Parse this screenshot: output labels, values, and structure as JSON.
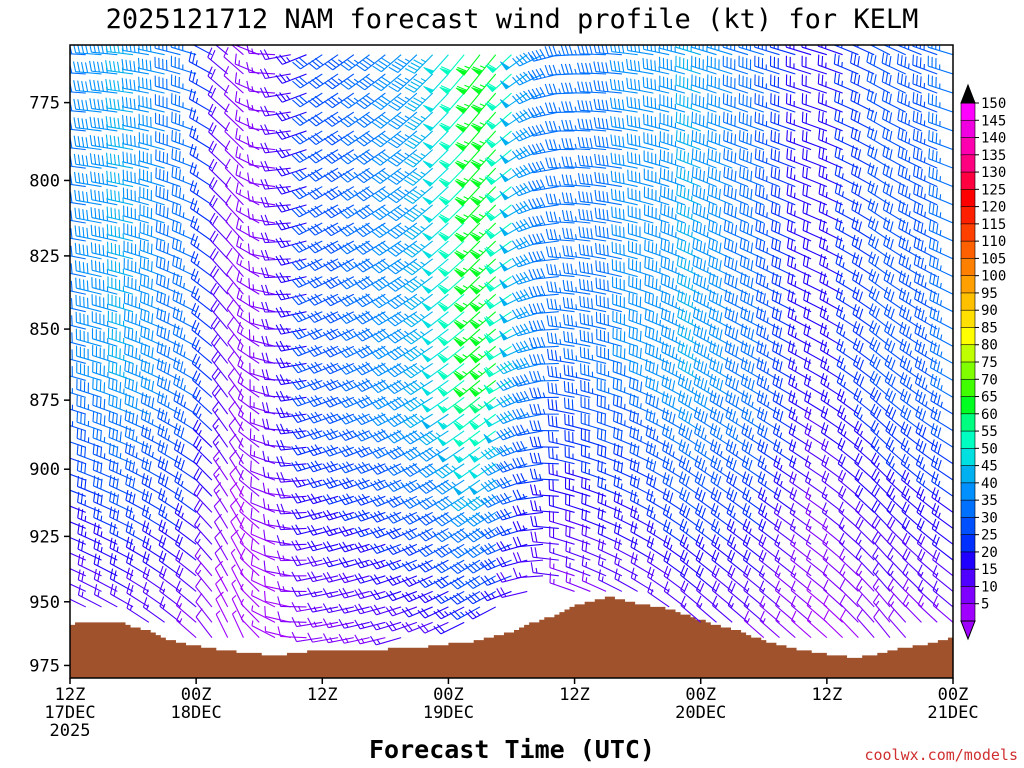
{
  "chart_data": {
    "type": "wind-barb-time-height",
    "title": "2025121712 NAM forecast wind profile (kt) for KELM",
    "xlabel": "Forecast Time (UTC)",
    "ylabel": "",
    "credit": "coolwx.com/models",
    "x_range_hours": [
      0,
      84
    ],
    "y_range_hpa": [
      757,
      980
    ],
    "y_ticks": [
      775,
      800,
      825,
      850,
      875,
      900,
      925,
      950,
      975
    ],
    "x_ticks": [
      {
        "hour": 0,
        "lines": [
          "12Z",
          "17DEC",
          "2025"
        ]
      },
      {
        "hour": 12,
        "lines": [
          "00Z",
          "18DEC"
        ]
      },
      {
        "hour": 24,
        "lines": [
          "12Z"
        ]
      },
      {
        "hour": 36,
        "lines": [
          "00Z",
          "19DEC"
        ]
      },
      {
        "hour": 48,
        "lines": [
          "12Z"
        ]
      },
      {
        "hour": 60,
        "lines": [
          "00Z",
          "20DEC"
        ]
      },
      {
        "hour": 72,
        "lines": [
          "12Z"
        ]
      },
      {
        "hour": 84,
        "lines": [
          "00Z",
          "21DEC"
        ]
      }
    ],
    "colorbar": {
      "min": 5,
      "max": 150,
      "step": 5,
      "labels": [
        150,
        145,
        140,
        135,
        130,
        125,
        120,
        115,
        110,
        105,
        100,
        95,
        90,
        85,
        80,
        75,
        70,
        65,
        60,
        55,
        50,
        45,
        40,
        35,
        30,
        25,
        20,
        15,
        10,
        5
      ],
      "colors": [
        "#ff00ff",
        "#f000e0",
        "#ff00b0",
        "#ff0080",
        "#ff0040",
        "#ff0000",
        "#ff2000",
        "#ff4000",
        "#ff6000",
        "#ff8000",
        "#ffa000",
        "#ffc000",
        "#ffe000",
        "#ffff00",
        "#c0ff00",
        "#80ff00",
        "#40ff00",
        "#00ff20",
        "#00ff80",
        "#00ffc0",
        "#00e0e0",
        "#00b0f0",
        "#0090ff",
        "#0070ff",
        "#0050ff",
        "#0030ff",
        "#2000ff",
        "#5000ff",
        "#8000ff",
        "#a000ff"
      ],
      "arrows": true
    },
    "wind_series": [
      {
        "hour": 0,
        "sfc": 959,
        "speed": 35,
        "dir": 285
      },
      {
        "hour": 6,
        "sfc": 960,
        "speed": 45,
        "dir": 290
      },
      {
        "hour": 12,
        "sfc": 968,
        "speed": 35,
        "dir": 300
      },
      {
        "hour": 16,
        "sfc": 971,
        "speed": 12,
        "dir": 330
      },
      {
        "hour": 20,
        "sfc": 969,
        "speed": 15,
        "dir": 280
      },
      {
        "hour": 24,
        "sfc": 969,
        "speed": 30,
        "dir": 250
      },
      {
        "hour": 30,
        "sfc": 968,
        "speed": 38,
        "dir": 245
      },
      {
        "hour": 36,
        "sfc": 964,
        "speed": 50,
        "dir": 235
      },
      {
        "hour": 40,
        "sfc": 956,
        "speed": 70,
        "dir": 230
      },
      {
        "hour": 44,
        "sfc": 948,
        "speed": 45,
        "dir": 250
      },
      {
        "hour": 48,
        "sfc": 949,
        "speed": 35,
        "dir": 280
      },
      {
        "hour": 54,
        "sfc": 952,
        "speed": 40,
        "dir": 290
      },
      {
        "hour": 60,
        "sfc": 961,
        "speed": 45,
        "dir": 300
      },
      {
        "hour": 66,
        "sfc": 967,
        "speed": 38,
        "dir": 300
      },
      {
        "hour": 72,
        "sfc": 971,
        "speed": 20,
        "dir": 300
      },
      {
        "hour": 78,
        "sfc": 968,
        "speed": 30,
        "dir": 310
      },
      {
        "hour": 84,
        "sfc": 965,
        "speed": 35,
        "dir": 300
      }
    ],
    "terrain_hpa": [
      959,
      958,
      958,
      958,
      958,
      958,
      958,
      958,
      958,
      958,
      958,
      959,
      960,
      960,
      961,
      961,
      962,
      963,
      964,
      965,
      965,
      966,
      966,
      967,
      967,
      967,
      968,
      968,
      968,
      969,
      969,
      969,
      969,
      970,
      970,
      970,
      970,
      970,
      971,
      971,
      971,
      971,
      971,
      970,
      970,
      970,
      970,
      969,
      969,
      969,
      969,
      969,
      969,
      969,
      969,
      969,
      969,
      969,
      969,
      969,
      969,
      969,
      969,
      968,
      968,
      968,
      968,
      968,
      968,
      968,
      968,
      967,
      967,
      967,
      967,
      966,
      966,
      966,
      966,
      966,
      965,
      965,
      964,
      964,
      963,
      963,
      962,
      962,
      961,
      960,
      959,
      958,
      958,
      957,
      956,
      956,
      955,
      954,
      953,
      952,
      951,
      951,
      950,
      950,
      949,
      949,
      948,
      948,
      949,
      949,
      950,
      950,
      951,
      951,
      951,
      952,
      952,
      952,
      953,
      953,
      954,
      955,
      955,
      956,
      957,
      957,
      958,
      959,
      959,
      960,
      960,
      961,
      961,
      962,
      963,
      964,
      964,
      965,
      966,
      966,
      967,
      967,
      968,
      968,
      969,
      969,
      969,
      970,
      970,
      970,
      971,
      971,
      971,
      971,
      972,
      972,
      972,
      971,
      971,
      971,
      970,
      970,
      969,
      969,
      968,
      968,
      968,
      967,
      967,
      967,
      966,
      966,
      965,
      965,
      964
    ]
  }
}
